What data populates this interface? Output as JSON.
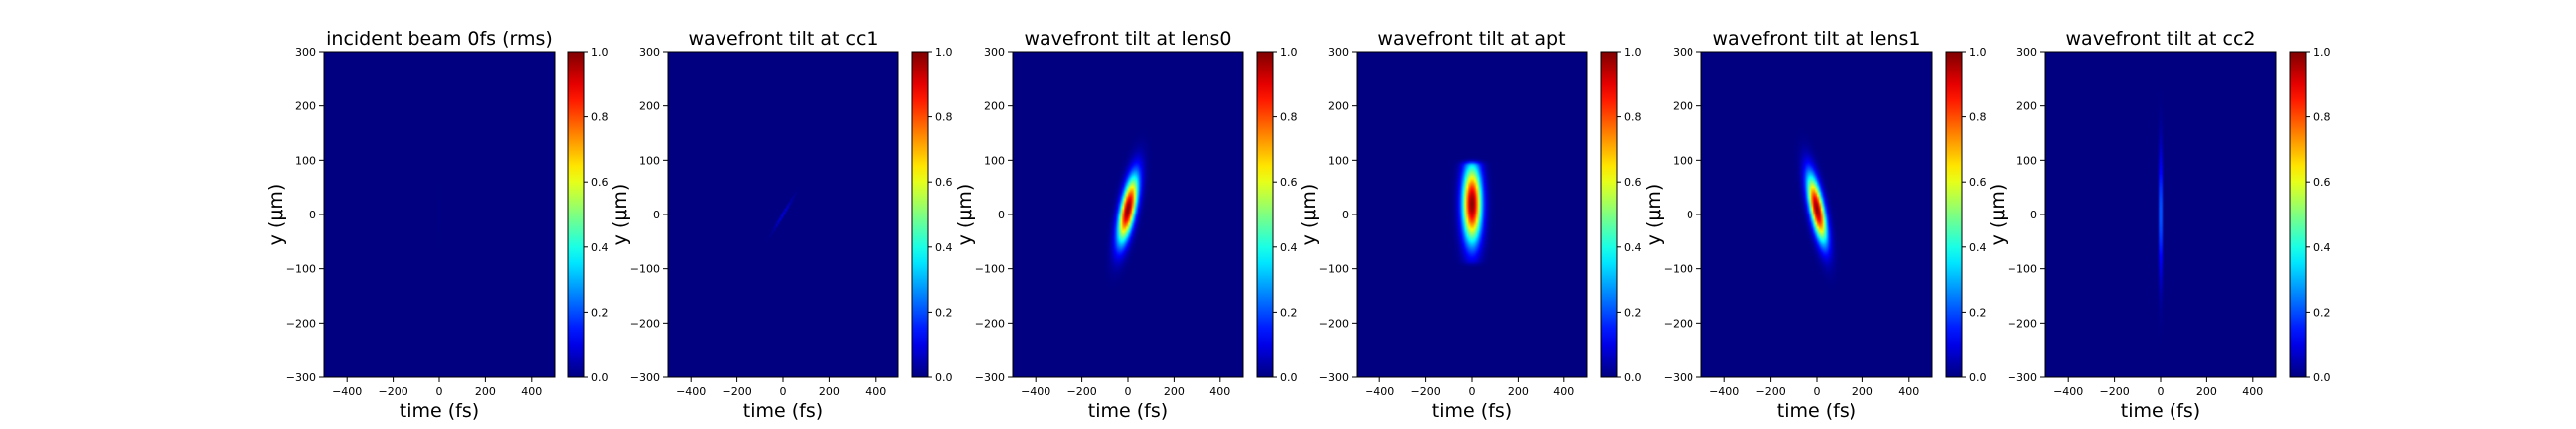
{
  "chart_data": [
    {
      "type": "heatmap",
      "title": "incident beam 0fs (rms)",
      "xlabel": "time (fs)",
      "ylabel": "y (μm)",
      "xlim": [
        -500,
        500
      ],
      "ylim": [
        -300,
        300
      ],
      "xticks": [
        -400,
        -200,
        0,
        200,
        400
      ],
      "yticks": [
        -300,
        -200,
        -100,
        0,
        100,
        200,
        300
      ],
      "colorbar": {
        "range": [
          0,
          1
        ],
        "ticks": [
          "0.0",
          "0.2",
          "0.4",
          "0.6",
          "0.8",
          "1.0"
        ],
        "colormap": "jet"
      },
      "intensity": {
        "center_t_fs": 0,
        "center_y_um": 0,
        "width_t_fs": 3,
        "width_y_um": 90,
        "tilt_fs_per_um": 0,
        "peak": 0.03
      }
    },
    {
      "type": "heatmap",
      "title": "wavefront tilt at cc1",
      "xlabel": "time (fs)",
      "ylabel": "y (μm)",
      "xlim": [
        -500,
        500
      ],
      "ylim": [
        -300,
        300
      ],
      "xticks": [
        -400,
        -200,
        0,
        200,
        400
      ],
      "yticks": [
        -300,
        -200,
        -100,
        0,
        100,
        200,
        300
      ],
      "colorbar": {
        "range": [
          0,
          1
        ],
        "ticks": [
          "0.0",
          "0.2",
          "0.4",
          "0.6",
          "0.8",
          "1.0"
        ],
        "colormap": "jet"
      },
      "intensity": {
        "center_t_fs": 0,
        "center_y_um": 0,
        "width_t_fs": 5,
        "width_y_um": 28,
        "tilt_fs_per_um": 1.4,
        "peak": 0.12
      }
    },
    {
      "type": "heatmap",
      "title": "wavefront tilt at lens0",
      "xlabel": "time (fs)",
      "ylabel": "y (μm)",
      "xlim": [
        -500,
        500
      ],
      "ylim": [
        -300,
        300
      ],
      "xticks": [
        -400,
        -200,
        0,
        200,
        400
      ],
      "yticks": [
        -300,
        -200,
        -100,
        0,
        100,
        200,
        300
      ],
      "colorbar": {
        "range": [
          0,
          1
        ],
        "ticks": [
          "0.0",
          "0.2",
          "0.4",
          "0.6",
          "0.8",
          "1.0"
        ],
        "colormap": "jet"
      },
      "intensity": {
        "center_t_fs": 0,
        "center_y_um": 10,
        "width_t_fs": 32,
        "width_y_um": 60,
        "tilt_fs_per_um": 0.45,
        "peak": 1.0
      }
    },
    {
      "type": "heatmap",
      "title": "wavefront tilt at apt",
      "xlabel": "time (fs)",
      "ylabel": "y (μm)",
      "xlim": [
        -500,
        500
      ],
      "ylim": [
        -300,
        300
      ],
      "xticks": [
        -400,
        -200,
        0,
        200,
        400
      ],
      "yticks": [
        -300,
        -200,
        -100,
        0,
        100,
        200,
        300
      ],
      "colorbar": {
        "range": [
          0,
          1
        ],
        "ticks": [
          "0.0",
          "0.2",
          "0.4",
          "0.6",
          "0.8",
          "1.0"
        ],
        "colormap": "jet"
      },
      "intensity": {
        "center_t_fs": 0,
        "center_y_um": 20,
        "width_t_fs": 40,
        "width_y_um": 70,
        "tilt_fs_per_um": 0,
        "peak": 1.0,
        "aperture_um": [
          -85,
          90
        ]
      }
    },
    {
      "type": "heatmap",
      "title": "wavefront tilt at lens1",
      "xlabel": "time (fs)",
      "ylabel": "y (μm)",
      "xlim": [
        -500,
        500
      ],
      "ylim": [
        -300,
        300
      ],
      "xticks": [
        -400,
        -200,
        0,
        200,
        400
      ],
      "yticks": [
        -300,
        -200,
        -100,
        0,
        100,
        200,
        300
      ],
      "colorbar": {
        "range": [
          0,
          1
        ],
        "ticks": [
          "0.0",
          "0.2",
          "0.4",
          "0.6",
          "0.8",
          "1.0"
        ],
        "colormap": "jet"
      },
      "intensity": {
        "center_t_fs": 0,
        "center_y_um": 10,
        "width_t_fs": 30,
        "width_y_um": 60,
        "tilt_fs_per_um": -0.45,
        "peak": 1.0
      }
    },
    {
      "type": "heatmap",
      "title": "wavefront tilt at cc2",
      "xlabel": "time (fs)",
      "ylabel": "y (μm)",
      "xlim": [
        -500,
        500
      ],
      "ylim": [
        -300,
        300
      ],
      "xticks": [
        -400,
        -200,
        0,
        200,
        400
      ],
      "yticks": [
        -300,
        -200,
        -100,
        0,
        100,
        200,
        300
      ],
      "colorbar": {
        "range": [
          0,
          1
        ],
        "ticks": [
          "0.0",
          "0.2",
          "0.4",
          "0.6",
          "0.8",
          "1.0"
        ],
        "colormap": "jet"
      },
      "intensity": {
        "center_t_fs": 0,
        "center_y_um": 0,
        "width_t_fs": 4,
        "width_y_um": 110,
        "tilt_fs_per_um": 0,
        "peak": 0.6
      }
    }
  ]
}
